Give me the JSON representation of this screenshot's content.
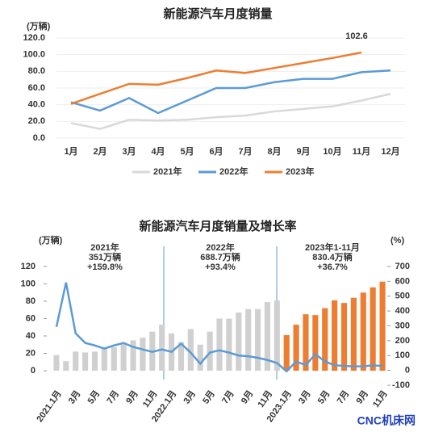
{
  "chart_data": [
    {
      "type": "line",
      "title": "新能源汽车月度销量",
      "y_unit": "(万辆)",
      "categories": [
        "1月",
        "2月",
        "3月",
        "4月",
        "5月",
        "6月",
        "7月",
        "8月",
        "9月",
        "10月",
        "11月",
        "12月"
      ],
      "series": [
        {
          "name": "2021年",
          "color": "#d9d9d9",
          "values": [
            18,
            11,
            22,
            21,
            22,
            25,
            27,
            32,
            35,
            38,
            45,
            53
          ]
        },
        {
          "name": "2022年",
          "color": "#5b9bd5",
          "values": [
            43,
            33,
            48,
            30,
            45,
            60,
            60,
            67,
            71,
            71,
            79,
            81
          ]
        },
        {
          "name": "2023年",
          "color": "#ed7d31",
          "label_last": true,
          "values": [
            41,
            53,
            65,
            64,
            72,
            81,
            78,
            84,
            90,
            96,
            102.6,
            null
          ]
        }
      ],
      "ylim": [
        0,
        120
      ],
      "yticks": [
        {
          "value": 0,
          "label": "0.0"
        },
        {
          "value": 20,
          "label": "20.0"
        },
        {
          "value": 40,
          "label": "40.0"
        },
        {
          "value": 60,
          "label": "60.0"
        },
        {
          "value": 80,
          "label": "80.0"
        },
        {
          "value": 100,
          "label": "100.0"
        },
        {
          "value": 120,
          "label": "120.0"
        }
      ],
      "legend": "bottom"
    },
    {
      "type": "combo",
      "title": "新能源汽车月度销量及增长率",
      "y_unit": "(万辆)",
      "y2_unit": "(%)",
      "categories": [
        "2021.1月",
        null,
        "3月",
        null,
        "5月",
        null,
        "7月",
        null,
        "9月",
        null,
        "11月",
        null,
        "2022.1月",
        null,
        "3月",
        null,
        "5月",
        null,
        "7月",
        null,
        "9月",
        null,
        "11月",
        null,
        "2023.1月",
        null,
        "3月",
        null,
        "5月",
        null,
        "7月",
        null,
        "9月",
        null,
        "11月"
      ],
      "series": [
        {
          "type": "bar",
          "color": "#d0d0d0",
          "values": [
            18,
            11,
            22,
            21,
            22,
            25,
            27,
            32,
            35,
            38,
            45,
            53,
            43,
            33,
            48,
            30,
            45,
            60,
            60,
            67,
            71,
            71,
            79,
            81,
            null,
            null,
            null,
            null,
            null,
            null,
            null,
            null,
            null,
            null,
            null
          ]
        },
        {
          "type": "bar",
          "color": "#ed7d31",
          "values": [
            null,
            null,
            null,
            null,
            null,
            null,
            null,
            null,
            null,
            null,
            null,
            null,
            null,
            null,
            null,
            null,
            null,
            null,
            null,
            null,
            null,
            null,
            null,
            null,
            41,
            53,
            65,
            64,
            72,
            81,
            78,
            84,
            90,
            96,
            102.6
          ]
        },
        {
          "type": "line",
          "color": "#5b9bd5",
          "axis": "y2",
          "values": [
            293,
            592,
            250,
            185,
            168,
            147,
            168,
            185,
            158,
            141,
            125,
            141,
            125,
            180,
            120,
            45,
            120,
            135,
            120,
            100,
            95,
            85,
            70,
            50,
            -6,
            60,
            35,
            110,
            60,
            35,
            30,
            27,
            28,
            34,
            30
          ]
        }
      ],
      "ylim": [
        0,
        120
      ],
      "yticks": [
        0,
        20,
        40,
        60,
        80,
        100,
        120
      ],
      "y2lim": [
        -100,
        700
      ],
      "y2ticks": [
        -100,
        0,
        100,
        200,
        300,
        400,
        500,
        600,
        700
      ],
      "annotations": [
        [
          "2021年",
          "351万辆",
          "+159.8%"
        ],
        [
          "2022年",
          "688.7万辆",
          "+93.4%"
        ],
        [
          "2023年1-11月",
          "830.4万辆",
          "+36.7%"
        ]
      ]
    }
  ],
  "footer": "CNC机床网"
}
